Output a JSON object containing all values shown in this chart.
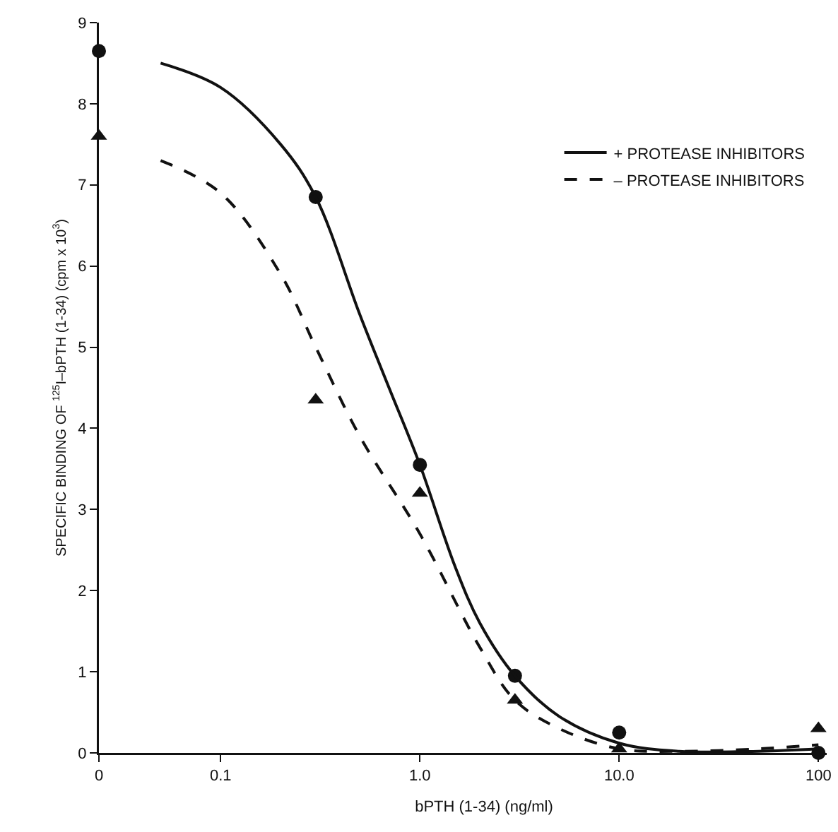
{
  "chart_data": [
    {
      "type": "scatter",
      "ylabel": "SPECIFIC BINDING OF $^{125}$I–bPTH (1-34) (cpm x 10$^{3}$)",
      "categories": [
        "0"
      ],
      "ylim": [
        0,
        9
      ],
      "yticks": [
        0,
        1,
        2,
        3,
        4,
        5,
        6,
        7,
        8,
        9
      ],
      "series": [
        {
          "type": "scatter",
          "color": "#111111",
          "marker": "circle",
          "values": [
            8.65
          ]
        },
        {
          "type": "scatter",
          "color": "#111111",
          "marker": "triangle",
          "values": [
            7.6
          ]
        }
      ]
    },
    {
      "type": "scatter",
      "xlabel": "bPTH (1-34) (ng/ml)",
      "log": "x",
      "xlim": [
        0.04,
        110
      ],
      "xticks": [
        {
          "value": 0.1,
          "label": "0.1"
        },
        {
          "value": 1,
          "label": "1.0"
        },
        {
          "value": 10,
          "label": "10.0"
        },
        100
      ],
      "ylim": [
        0,
        9
      ],
      "tick_labels": "x",
      "legend": "top right",
      "series": [
        {
          "type": "scatter",
          "color": "#111111",
          "marker": "circle",
          "x": [
            0.3,
            1,
            3,
            10,
            100
          ],
          "values": [
            6.85,
            3.55,
            0.95,
            0.25,
            0.0
          ]
        },
        {
          "type": "scatter",
          "color": "#111111",
          "marker": "triangle",
          "x": [
            0.3,
            1,
            3,
            10,
            100
          ],
          "values": [
            4.35,
            3.2,
            0.65,
            0.05,
            0.3
          ]
        },
        {
          "type": "line",
          "name": "+ PROTEASE INHIBITORS",
          "color": "#111111",
          "line_style": "solid",
          "x": [
            0.05,
            0.1,
            0.2,
            0.3,
            0.5,
            0.7,
            1,
            1.5,
            2,
            3,
            5,
            10,
            20,
            50,
            100
          ],
          "values": [
            8.5,
            8.2,
            7.5,
            6.85,
            5.4,
            4.5,
            3.55,
            2.3,
            1.6,
            0.95,
            0.45,
            0.12,
            0.02,
            0.02,
            0.05
          ]
        },
        {
          "type": "line",
          "name": "– PROTEASE INHIBITORS",
          "color": "#111111",
          "line_style": "dashed",
          "x": [
            0.05,
            0.1,
            0.2,
            0.3,
            0.5,
            1,
            2,
            3,
            5,
            10,
            20,
            50,
            100
          ],
          "values": [
            7.3,
            6.9,
            5.9,
            5.0,
            3.9,
            2.7,
            1.3,
            0.65,
            0.3,
            0.05,
            0.02,
            0.05,
            0.1
          ]
        }
      ]
    }
  ]
}
